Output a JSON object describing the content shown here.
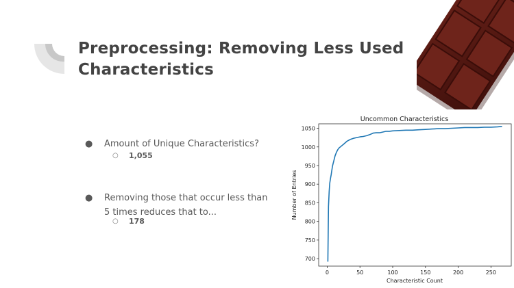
{
  "slide": {
    "title_line1": "Preprocessing: Removing Less Used",
    "title_line2": "Characteristics",
    "bullets": [
      {
        "text": "Amount of Unique Characteristics?",
        "sub": "1,055"
      },
      {
        "text": "Removing those that occur less than 5 times reduces that to...",
        "sub": "178"
      }
    ],
    "bullet_symbol": "●",
    "sub_bullet_symbol": "○",
    "decoration_icon": "quarter-circle-icon",
    "image": "chocolate-bar-image"
  },
  "colors": {
    "title": "#434343",
    "text": "#595959",
    "line": "#1f77b4",
    "chocolate": "#5a1a14"
  },
  "chart_data": {
    "type": "line",
    "title": "Uncommon Characteristics",
    "xlabel": "Characteristic Count",
    "ylabel": "Number of Entries",
    "xlim": [
      -13,
      281
    ],
    "ylim": [
      680,
      1062
    ],
    "xticks": [
      0,
      50,
      100,
      150,
      200,
      250
    ],
    "yticks": [
      700,
      750,
      800,
      850,
      900,
      950,
      1000,
      1050
    ],
    "series": [
      {
        "x": [
          1,
          2,
          3,
          4,
          5,
          6,
          7,
          8,
          9,
          10,
          12,
          14,
          16,
          18,
          20,
          25,
          30,
          35,
          40,
          45,
          50,
          55,
          60,
          65,
          70,
          75,
          80,
          85,
          90,
          95,
          100,
          110,
          120,
          130,
          140,
          150,
          160,
          170,
          180,
          190,
          200,
          210,
          220,
          230,
          240,
          250,
          260,
          267
        ],
        "values": [
          692,
          840,
          880,
          903,
          915,
          925,
          936,
          948,
          955,
          962,
          976,
          985,
          992,
          997,
          1000,
          1007,
          1015,
          1020,
          1023,
          1025,
          1027,
          1028,
          1030,
          1033,
          1037,
          1038,
          1038,
          1040,
          1042,
          1042,
          1043,
          1044,
          1045,
          1045,
          1046,
          1047,
          1048,
          1049,
          1049,
          1050,
          1051,
          1052,
          1052,
          1052,
          1053,
          1053,
          1054,
          1055
        ]
      }
    ],
    "grid": false,
    "legend": "none"
  }
}
